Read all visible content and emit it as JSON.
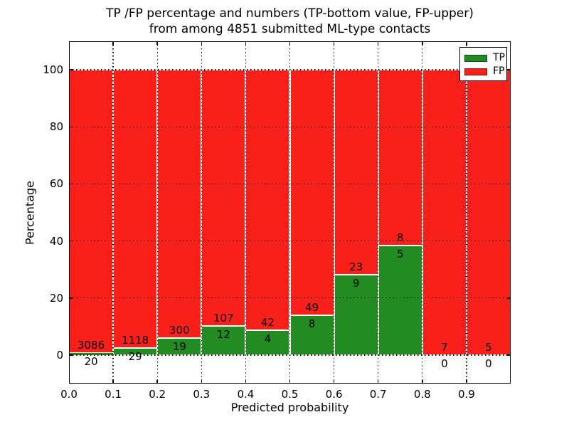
{
  "figure": {
    "title_line1": "TP /FP percentage and numbers (TP-bottom value, FP-upper)",
    "title_line2": "from among 4851 submitted ML-type contacts"
  },
  "chart_data": {
    "type": "bar",
    "subtype": "stacked-percentage-histogram",
    "title": "TP /FP percentage and numbers (TP-bottom value, FP-upper) from among 4851 submitted ML-type contacts",
    "xlabel": "Predicted probability",
    "ylabel": "Percentage",
    "total_contacts": 4851,
    "bin_edges": [
      0.0,
      0.1,
      0.2,
      0.3,
      0.4,
      0.5,
      0.6,
      0.7,
      0.8,
      0.9,
      1.0
    ],
    "categories": [
      "0.0-0.1",
      "0.1-0.2",
      "0.2-0.3",
      "0.3-0.4",
      "0.4-0.5",
      "0.5-0.6",
      "0.6-0.7",
      "0.7-0.8",
      "0.8-0.9",
      "0.9-1.0"
    ],
    "series": [
      {
        "name": "TP",
        "color": "#228b22",
        "counts": [
          20,
          29,
          19,
          12,
          4,
          8,
          9,
          5,
          0,
          0
        ]
      },
      {
        "name": "FP",
        "color": "#fa201a",
        "counts": [
          3086,
          1118,
          300,
          107,
          42,
          49,
          23,
          8,
          7,
          5
        ]
      }
    ],
    "tp_percent": [
      0.64,
      2.53,
      5.96,
      10.08,
      8.7,
      14.04,
      28.13,
      38.46,
      0.0,
      0.0
    ],
    "bar_label_rule": "FP count printed above green/red boundary, TP count printed below it",
    "xlim": [
      0.0,
      1.0
    ],
    "ylim": [
      -10,
      110
    ],
    "yticks": [
      0,
      20,
      40,
      60,
      80,
      100
    ],
    "xtick_labels": [
      "0.0",
      "0.1",
      "0.2",
      "0.3",
      "0.4",
      "0.5",
      "0.6",
      "0.7",
      "0.8",
      "0.9"
    ],
    "grid": "dotted-black-above-bars",
    "legend": {
      "position": "upper-right",
      "entries": [
        {
          "label": "TP",
          "color": "#228b22"
        },
        {
          "label": "FP",
          "color": "#fa201a"
        }
      ]
    }
  }
}
